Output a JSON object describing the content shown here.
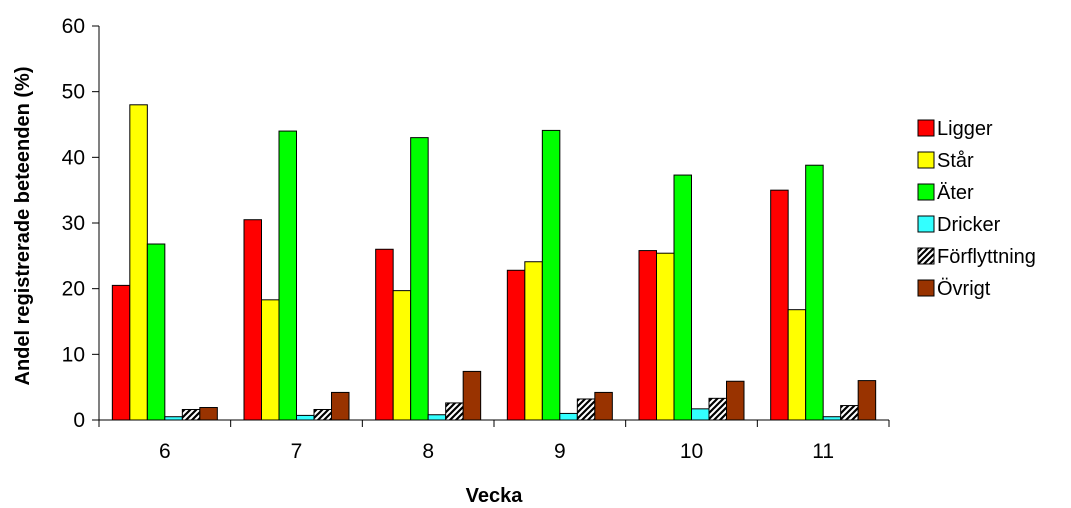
{
  "chart_data": {
    "type": "bar",
    "xlabel": "Vecka",
    "ylabel": "Andel registrerade beteenden (%)",
    "ylim": [
      0,
      60
    ],
    "yticks": [
      0,
      10,
      20,
      30,
      40,
      50,
      60
    ],
    "categories": [
      "6",
      "7",
      "8",
      "9",
      "10",
      "11"
    ],
    "grid": false,
    "legend_position": "right",
    "series": [
      {
        "name": "Ligger",
        "color": "#ff0000",
        "pattern": "solid",
        "values": [
          20.5,
          30.5,
          26.0,
          22.8,
          25.8,
          35.0
        ]
      },
      {
        "name": "Står",
        "color": "#ffff00",
        "pattern": "solid",
        "values": [
          48.0,
          18.3,
          19.7,
          24.1,
          25.4,
          16.8
        ]
      },
      {
        "name": "Äter",
        "color": "#00ff00",
        "pattern": "solid",
        "values": [
          26.8,
          44.0,
          43.0,
          44.1,
          37.3,
          38.8
        ]
      },
      {
        "name": "Dricker",
        "color": "#33ffff",
        "pattern": "solid",
        "values": [
          0.5,
          0.7,
          0.8,
          1.0,
          1.7,
          0.5
        ]
      },
      {
        "name": "Förflyttning",
        "color": "#555555",
        "pattern": "hatch",
        "values": [
          1.6,
          1.6,
          2.6,
          3.2,
          3.3,
          2.2
        ]
      },
      {
        "name": "Övrigt",
        "color": "#993300",
        "pattern": "solid",
        "values": [
          1.9,
          4.2,
          7.4,
          4.2,
          5.9,
          6.0
        ]
      }
    ]
  }
}
